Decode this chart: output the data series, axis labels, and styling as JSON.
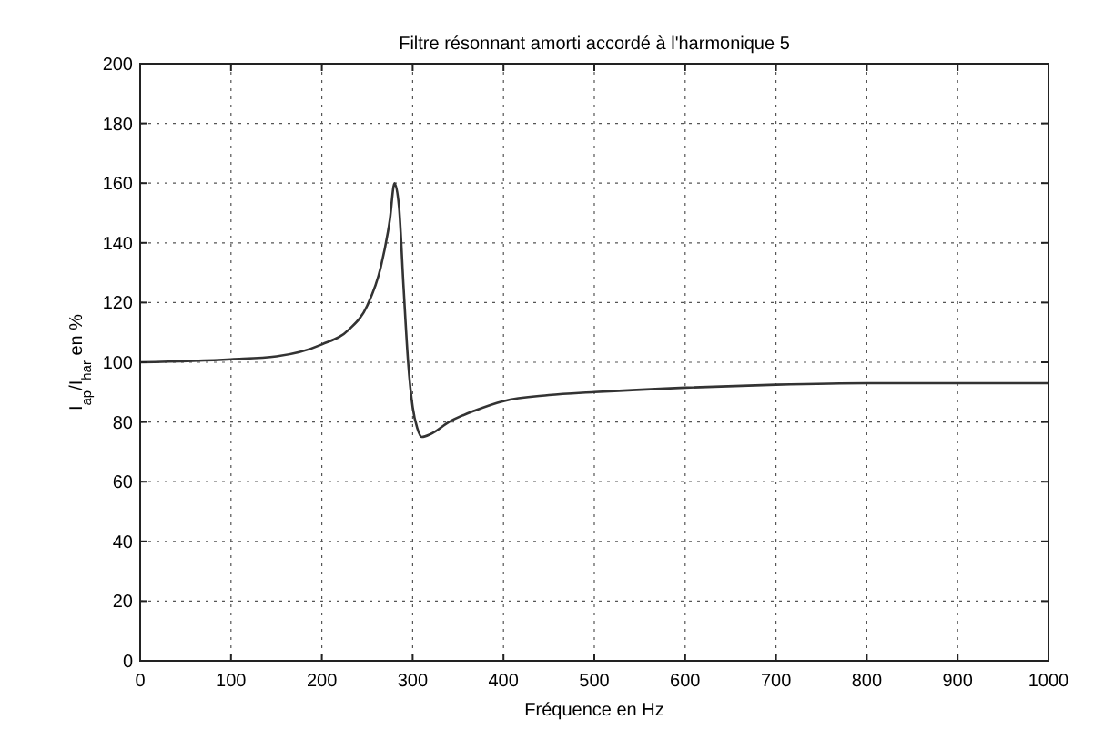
{
  "chart_data": {
    "type": "line",
    "title": "Filtre résonnant amorti accordé à l'harmonique 5",
    "xlabel": "Fréquence en Hz",
    "ylabel": "I$_{ap}$/I$_{har}$ en %",
    "x": [
      0,
      100,
      150,
      200,
      230,
      250,
      265,
      275,
      280,
      285,
      290,
      295,
      300,
      305,
      310,
      320,
      340,
      370,
      400,
      450,
      500,
      600,
      700,
      800,
      900,
      1000
    ],
    "series": [
      {
        "color": "#333333",
        "values": [
          100,
          101,
          102,
          106,
          111,
          119,
          132,
          148,
          160,
          152,
          125,
          100,
          85,
          78,
          75,
          76,
          80,
          84,
          87,
          89,
          90,
          91.5,
          92.5,
          93,
          93,
          93
        ]
      }
    ],
    "xlim": [
      0,
      1000
    ],
    "ylim": [
      0,
      200
    ],
    "xticks": [
      0,
      100,
      200,
      300,
      400,
      500,
      600,
      700,
      800,
      900,
      1000
    ],
    "yticks": [
      0,
      20,
      40,
      60,
      80,
      100,
      120,
      140,
      160,
      180,
      200
    ],
    "grid": true,
    "line_style": "solid"
  }
}
